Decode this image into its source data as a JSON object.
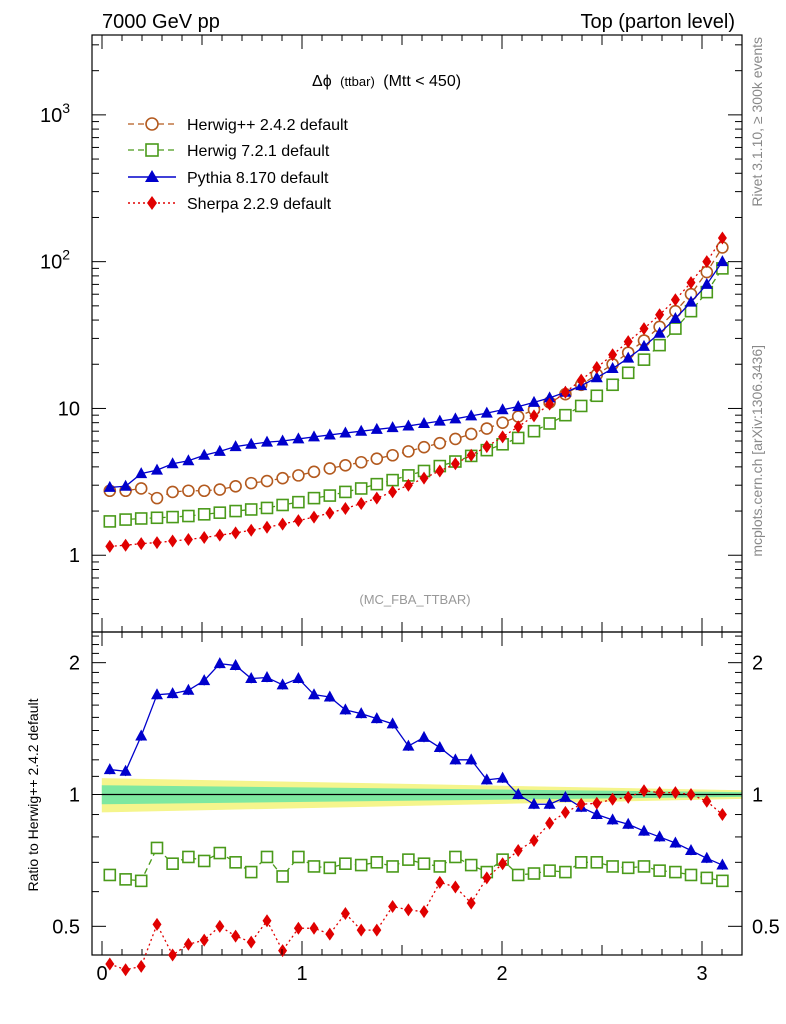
{
  "header": {
    "left": "7000 GeV pp",
    "right": "Top (parton level)"
  },
  "side_labels": {
    "rivet": "Rivet 3.1.10, ≥ 300k events",
    "mcplots": "mcplots.cern.ch [arXiv:1306.3436]"
  },
  "analysis_tag": "(MC_FBA_TTBAR)",
  "chart_data": [
    {
      "type": "line",
      "panel": "main",
      "title_prefix": "Δϕ",
      "title_mid": "(ttbar)",
      "title_suffix": "(Mtt < 450)",
      "xlabel": "",
      "ylabel": "",
      "yscale": "log",
      "xlim": [
        -0.05,
        3.2
      ],
      "ylim": [
        0.3,
        3500
      ],
      "y_ticks": [
        {
          "v": 1,
          "label": "1"
        },
        {
          "v": 10,
          "label": "10"
        },
        {
          "v": 100,
          "label": "10",
          "exp": "2"
        },
        {
          "v": 1000,
          "label": "10",
          "exp": "3"
        }
      ],
      "legend_position": "top-left",
      "x": [
        0.039,
        0.118,
        0.196,
        0.275,
        0.353,
        0.432,
        0.511,
        0.589,
        0.668,
        0.746,
        0.825,
        0.903,
        0.982,
        1.06,
        1.139,
        1.217,
        1.296,
        1.374,
        1.453,
        1.532,
        1.61,
        1.689,
        1.767,
        1.846,
        1.924,
        2.003,
        2.081,
        2.16,
        2.238,
        2.317,
        2.396,
        2.474,
        2.553,
        2.631,
        2.71,
        2.788,
        2.867,
        2.945,
        3.024,
        3.102
      ],
      "series": [
        {
          "name": "Herwig++ 2.4.2 default",
          "color": "#b35a1f",
          "marker": "open-circle",
          "dash": "6,4",
          "values": [
            2.75,
            2.75,
            2.85,
            2.45,
            2.7,
            2.75,
            2.75,
            2.8,
            2.95,
            3.1,
            3.2,
            3.35,
            3.5,
            3.7,
            3.9,
            4.1,
            4.3,
            4.55,
            4.8,
            5.1,
            5.45,
            5.8,
            6.2,
            6.7,
            7.3,
            8.0,
            8.8,
            9.8,
            11.0,
            12.5,
            14.5,
            17.0,
            20.0,
            24.0,
            29.0,
            36.0,
            46.0,
            60.0,
            85.0,
            125.0
          ]
        },
        {
          "name": "Herwig 7.2.1 default",
          "color": "#4a9a1a",
          "marker": "open-square",
          "dash": "6,4",
          "values": [
            1.7,
            1.75,
            1.78,
            1.8,
            1.82,
            1.85,
            1.9,
            1.95,
            2.0,
            2.05,
            2.1,
            2.2,
            2.3,
            2.45,
            2.55,
            2.7,
            2.85,
            3.05,
            3.25,
            3.5,
            3.75,
            4.05,
            4.35,
            4.75,
            5.2,
            5.7,
            6.3,
            7.0,
            7.9,
            9.0,
            10.4,
            12.2,
            14.5,
            17.5,
            21.5,
            27.0,
            35.0,
            46.0,
            62.0,
            90.0
          ]
        },
        {
          "name": "Pythia 8.170 default",
          "color": "#0000cc",
          "marker": "filled-triangle",
          "dash": "",
          "values": [
            2.9,
            2.95,
            3.6,
            3.8,
            4.2,
            4.4,
            4.8,
            5.1,
            5.5,
            5.7,
            5.9,
            6.0,
            6.2,
            6.4,
            6.6,
            6.8,
            7.0,
            7.2,
            7.4,
            7.6,
            7.9,
            8.2,
            8.5,
            8.9,
            9.3,
            9.8,
            10.3,
            11.0,
            11.8,
            12.9,
            14.3,
            16.2,
            18.7,
            22.0,
            26.5,
            32.5,
            41.0,
            53.0,
            70.0,
            100.0
          ]
        },
        {
          "name": "Sherpa 2.2.9 default",
          "color": "#e00000",
          "marker": "filled-diamond",
          "dash": "2,3",
          "values": [
            1.15,
            1.17,
            1.2,
            1.22,
            1.25,
            1.28,
            1.32,
            1.37,
            1.42,
            1.48,
            1.55,
            1.63,
            1.72,
            1.82,
            1.94,
            2.08,
            2.25,
            2.45,
            2.7,
            3.0,
            3.35,
            3.75,
            4.2,
            4.8,
            5.5,
            6.4,
            7.5,
            8.9,
            10.7,
            12.9,
            15.6,
            19.0,
            23.2,
            28.5,
            35.0,
            43.5,
            55.0,
            72.0,
            100.0,
            145.0
          ]
        }
      ]
    },
    {
      "type": "line",
      "panel": "ratio",
      "title": "",
      "xlabel": "",
      "ylabel": "Ratio to Herwig++ 2.4.2 default",
      "yscale": "log",
      "xlim": [
        -0.05,
        3.2
      ],
      "ylim": [
        0.43,
        2.35
      ],
      "x_ticks": [
        0,
        1,
        2,
        3
      ],
      "y_ticks": [
        0.5,
        1,
        2
      ],
      "reference": {
        "value": 1.0,
        "band_inner": 0.05,
        "band_outer": 0.09,
        "inner_color": "#7ee8a0",
        "outer_color": "#f5f58c"
      },
      "x": [
        0.039,
        0.118,
        0.196,
        0.275,
        0.353,
        0.432,
        0.511,
        0.589,
        0.668,
        0.746,
        0.825,
        0.903,
        0.982,
        1.06,
        1.139,
        1.217,
        1.296,
        1.374,
        1.453,
        1.532,
        1.61,
        1.689,
        1.767,
        1.846,
        1.924,
        2.003,
        2.081,
        2.16,
        2.238,
        2.317,
        2.396,
        2.474,
        2.553,
        2.631,
        2.71,
        2.788,
        2.867,
        2.945,
        3.024,
        3.102
      ],
      "series": [
        {
          "name": "Herwig 7.2.1 default",
          "color": "#4a9a1a",
          "marker": "open-square",
          "dash": "6,4",
          "values": [
            0.655,
            0.64,
            0.635,
            0.755,
            0.695,
            0.72,
            0.705,
            0.735,
            0.7,
            0.665,
            0.72,
            0.65,
            0.72,
            0.685,
            0.68,
            0.695,
            0.69,
            0.7,
            0.685,
            0.71,
            0.695,
            0.685,
            0.72,
            0.69,
            0.665,
            0.71,
            0.655,
            0.66,
            0.67,
            0.665,
            0.7,
            0.7,
            0.685,
            0.68,
            0.685,
            0.67,
            0.665,
            0.655,
            0.645,
            0.635
          ]
        },
        {
          "name": "Pythia 8.170 default",
          "color": "#0000cc",
          "marker": "filled-triangle",
          "dash": "",
          "values": [
            1.14,
            1.13,
            1.36,
            1.69,
            1.7,
            1.73,
            1.82,
            1.99,
            1.97,
            1.84,
            1.85,
            1.78,
            1.84,
            1.69,
            1.67,
            1.56,
            1.53,
            1.49,
            1.45,
            1.29,
            1.35,
            1.28,
            1.2,
            1.2,
            1.08,
            1.09,
            1.0,
            0.95,
            0.95,
            0.985,
            0.935,
            0.9,
            0.875,
            0.855,
            0.825,
            0.8,
            0.775,
            0.745,
            0.715,
            0.69
          ]
        },
        {
          "name": "Sherpa 2.2.9 default",
          "color": "#e00000",
          "marker": "filled-diamond",
          "dash": "2,3",
          "values": [
            0.41,
            0.398,
            0.405,
            0.505,
            0.43,
            0.455,
            0.465,
            0.5,
            0.475,
            0.46,
            0.515,
            0.44,
            0.495,
            0.495,
            0.48,
            0.535,
            0.49,
            0.49,
            0.555,
            0.545,
            0.54,
            0.63,
            0.615,
            0.565,
            0.645,
            0.695,
            0.745,
            0.785,
            0.86,
            0.91,
            0.95,
            0.955,
            0.975,
            0.985,
            1.02,
            1.01,
            1.01,
            1.0,
            0.965,
            0.9
          ]
        }
      ]
    }
  ]
}
